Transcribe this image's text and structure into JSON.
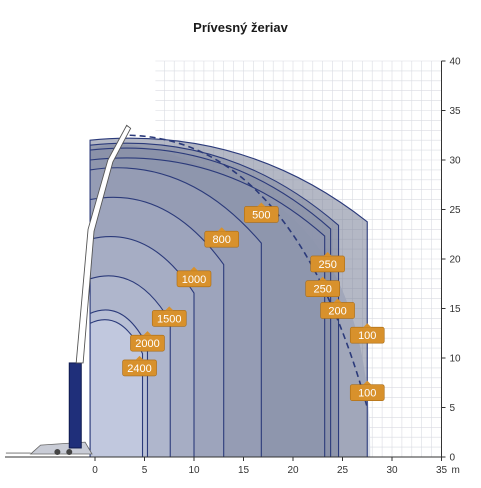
{
  "chart_data": {
    "type": "area",
    "title": "Prívesný žeriav",
    "x_unit": "m",
    "xlim": [
      -9,
      35
    ],
    "ylim": [
      0,
      40
    ],
    "x_ticks": [
      0,
      5,
      10,
      15,
      20,
      25,
      30,
      35
    ],
    "y_ticks": [
      0,
      5,
      10,
      15,
      20,
      25,
      30,
      35,
      40
    ],
    "grid": true,
    "crane_tip": [
      3.5,
      34.5
    ],
    "envelope_outer": {
      "radius_max": 27.5,
      "height_max": 33
    },
    "load_zones": [
      {
        "load": "2400",
        "radius": 4.8,
        "height": 14.5
      },
      {
        "load": "2000",
        "radius": 5.3,
        "height": 15.5
      },
      {
        "load": "1500",
        "radius": 7.6,
        "height": 19
      },
      {
        "load": "1000",
        "radius": 10.0,
        "height": 23
      },
      {
        "load": "800",
        "radius": 13.0,
        "height": 27
      },
      {
        "load": "500",
        "radius": 16.8,
        "height": 30
      },
      {
        "load": "250",
        "radius": 23.2,
        "height": 31
      },
      {
        "load": "250",
        "radius": 23.8,
        "height": 32
      },
      {
        "load": "200",
        "radius": 24.6,
        "height": 32.5
      },
      {
        "load": "100",
        "radius": 27.5,
        "height": 33
      }
    ],
    "load_labels": [
      {
        "text": "2400",
        "x": 4.5,
        "y": 9.0
      },
      {
        "text": "2000",
        "x": 5.3,
        "y": 11.5
      },
      {
        "text": "1500",
        "x": 7.5,
        "y": 14.0
      },
      {
        "text": "1000",
        "x": 10.0,
        "y": 18.0
      },
      {
        "text": "800",
        "x": 12.8,
        "y": 22.0
      },
      {
        "text": "500",
        "x": 16.8,
        "y": 24.5
      },
      {
        "text": "250",
        "x": 23.5,
        "y": 19.5
      },
      {
        "text": "250",
        "x": 23.0,
        "y": 17.0
      },
      {
        "text": "200",
        "x": 24.5,
        "y": 14.8
      },
      {
        "text": "100",
        "x": 27.5,
        "y": 12.3
      },
      {
        "text": "100",
        "x": 27.5,
        "y": 6.5
      }
    ]
  }
}
